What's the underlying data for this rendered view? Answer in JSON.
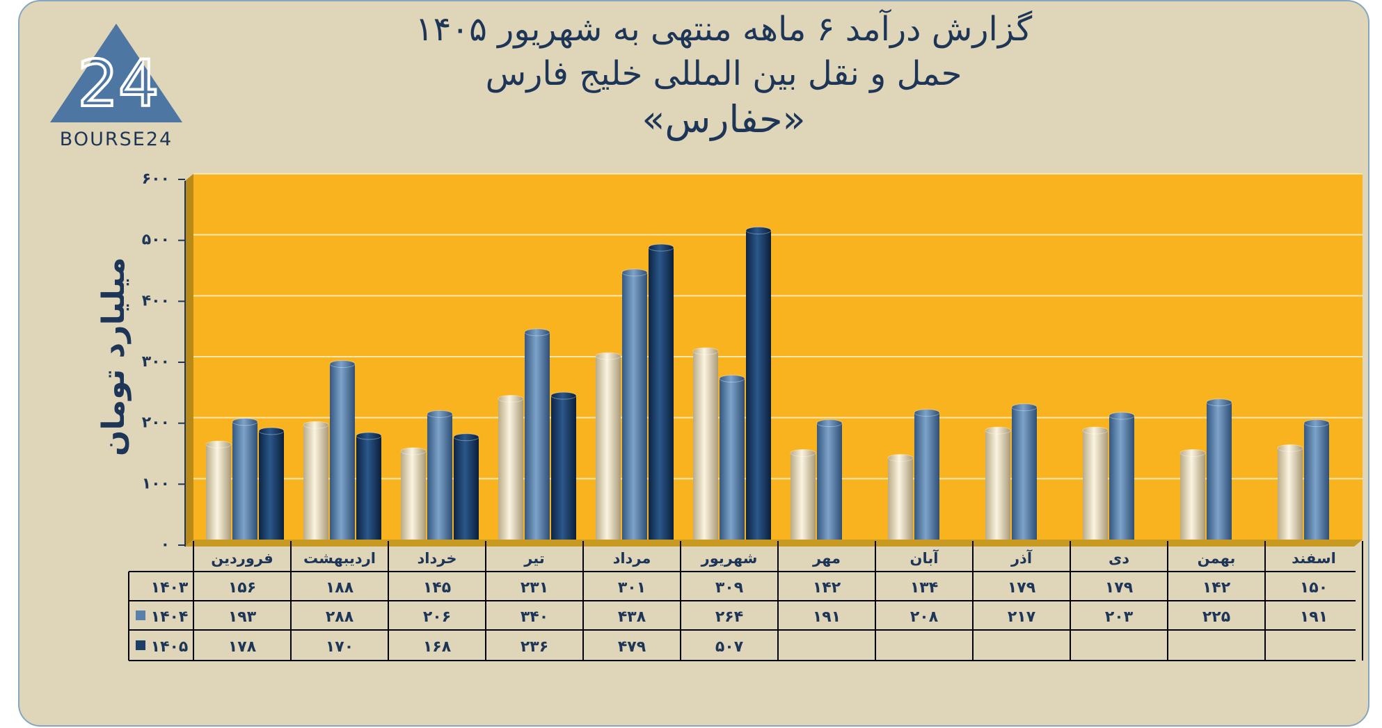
{
  "brand": {
    "logo_numeral": "24",
    "logo_text": "BOURSE24"
  },
  "header": {
    "title_line1": "گزارش  درآمد ۶ ماهه منتهی به شهریور ۱۴۰۵",
    "title_line2": "حمل و نقل بین المللی خلیج فارس",
    "title_line3": "«حفارس»"
  },
  "colors": {
    "plot_bg": "#f9b31f",
    "frame_bg": "#dfd5b9",
    "text": "#1d3557",
    "s1403": "#ede2c4",
    "s1404": "#5880ac",
    "s1405": "#1b3d68"
  },
  "chart_data": {
    "type": "bar",
    "ylabel": "میلیارد تومان",
    "ylim": [
      0,
      600
    ],
    "yticks": [
      0,
      100,
      200,
      300,
      400,
      500,
      600
    ],
    "ytick_labels": [
      "۰",
      "۱۰۰",
      "۲۰۰",
      "۳۰۰",
      "۴۰۰",
      "۵۰۰",
      "۶۰۰"
    ],
    "categories": [
      "فروردین",
      "اردیبهشت",
      "خرداد",
      "تیر",
      "مرداد",
      "شهریور",
      "مهر",
      "آبان",
      "آذر",
      "دی",
      "بهمن",
      "اسفند"
    ],
    "series": [
      {
        "name": "۱۴۰۳",
        "values": [
          156,
          188,
          145,
          231,
          301,
          309,
          142,
          134,
          179,
          179,
          142,
          150
        ],
        "labels": [
          "۱۵۶",
          "۱۸۸",
          "۱۴۵",
          "۲۳۱",
          "۳۰۱",
          "۳۰۹",
          "۱۴۲",
          "۱۳۴",
          "۱۷۹",
          "۱۷۹",
          "۱۴۲",
          "۱۵۰"
        ]
      },
      {
        "name": "۱۴۰۴",
        "values": [
          193,
          288,
          206,
          340,
          438,
          264,
          191,
          208,
          217,
          203,
          225,
          191
        ],
        "labels": [
          "۱۹۳",
          "۲۸۸",
          "۲۰۶",
          "۳۴۰",
          "۴۳۸",
          "۲۶۴",
          "۱۹۱",
          "۲۰۸",
          "۲۱۷",
          "۲۰۳",
          "۲۲۵",
          "۱۹۱"
        ]
      },
      {
        "name": "۱۴۰۵",
        "values": [
          178,
          170,
          168,
          236,
          479,
          507,
          null,
          null,
          null,
          null,
          null,
          null
        ],
        "labels": [
          "۱۷۸",
          "۱۷۰",
          "۱۶۸",
          "۲۳۶",
          "۴۷۹",
          "۵۰۷",
          "",
          "",
          "",
          "",
          "",
          ""
        ]
      }
    ],
    "grid": true,
    "legend": "in data table"
  }
}
